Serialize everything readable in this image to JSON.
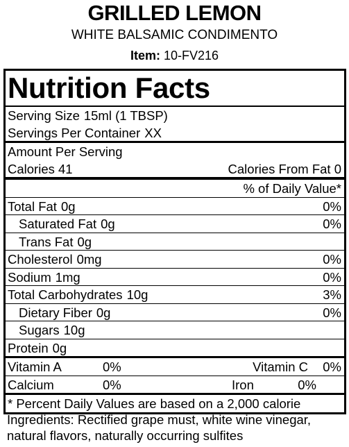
{
  "header": {
    "title": "GRILLED LEMON",
    "subtitle": "WHITE BALSAMIC CONDIMENTO",
    "item_label": "Item:",
    "item_code": "10-FV216"
  },
  "label": {
    "title": "Nutrition Facts",
    "serving_size": {
      "label": "Serving Size",
      "value": "15ml (1 TBSP)"
    },
    "servings_per_container": {
      "label": "Servings Per Container",
      "value": "XX"
    },
    "amount_per_serving": "Amount Per Serving",
    "calories": "Calories 41",
    "calories_from_fat": "Calories From Fat 0",
    "daily_value_header": "% of Daily Value*",
    "nutrients": [
      {
        "name": "Total Fat",
        "amount": "0g",
        "dv": "0%"
      },
      {
        "name": "Saturated Fat",
        "amount": "0g",
        "dv": "0%"
      },
      {
        "name": "Trans Fat",
        "amount": "0g"
      },
      {
        "name": "Cholesterol",
        "amount": "0mg",
        "dv": "0%"
      },
      {
        "name": "Sodium",
        "amount": "1mg",
        "dv": "0%"
      },
      {
        "name": "Total Carbohydrates",
        "amount": "10g",
        "dv": "3%"
      },
      {
        "name": "Dietary Fiber",
        "amount": "0g",
        "dv": "0%"
      },
      {
        "name": "Sugars",
        "amount": "10g"
      },
      {
        "name": "Protein",
        "amount": "0g"
      }
    ],
    "vitamins": [
      [
        {
          "name": "Vitamin A",
          "dv": "0%"
        },
        {
          "name": "Vitamin C",
          "dv": "0%"
        }
      ],
      [
        {
          "name": "Calcium",
          "dv": "0%"
        },
        {
          "name": "Iron",
          "dv": "0%"
        }
      ]
    ],
    "footnote": "* Percent Daily Values are based on a 2,000 calorie"
  },
  "ingredients": "Ingredients: Rectified grape must, white wine vinegar, natural flavors, naturally occurring sulfites"
}
